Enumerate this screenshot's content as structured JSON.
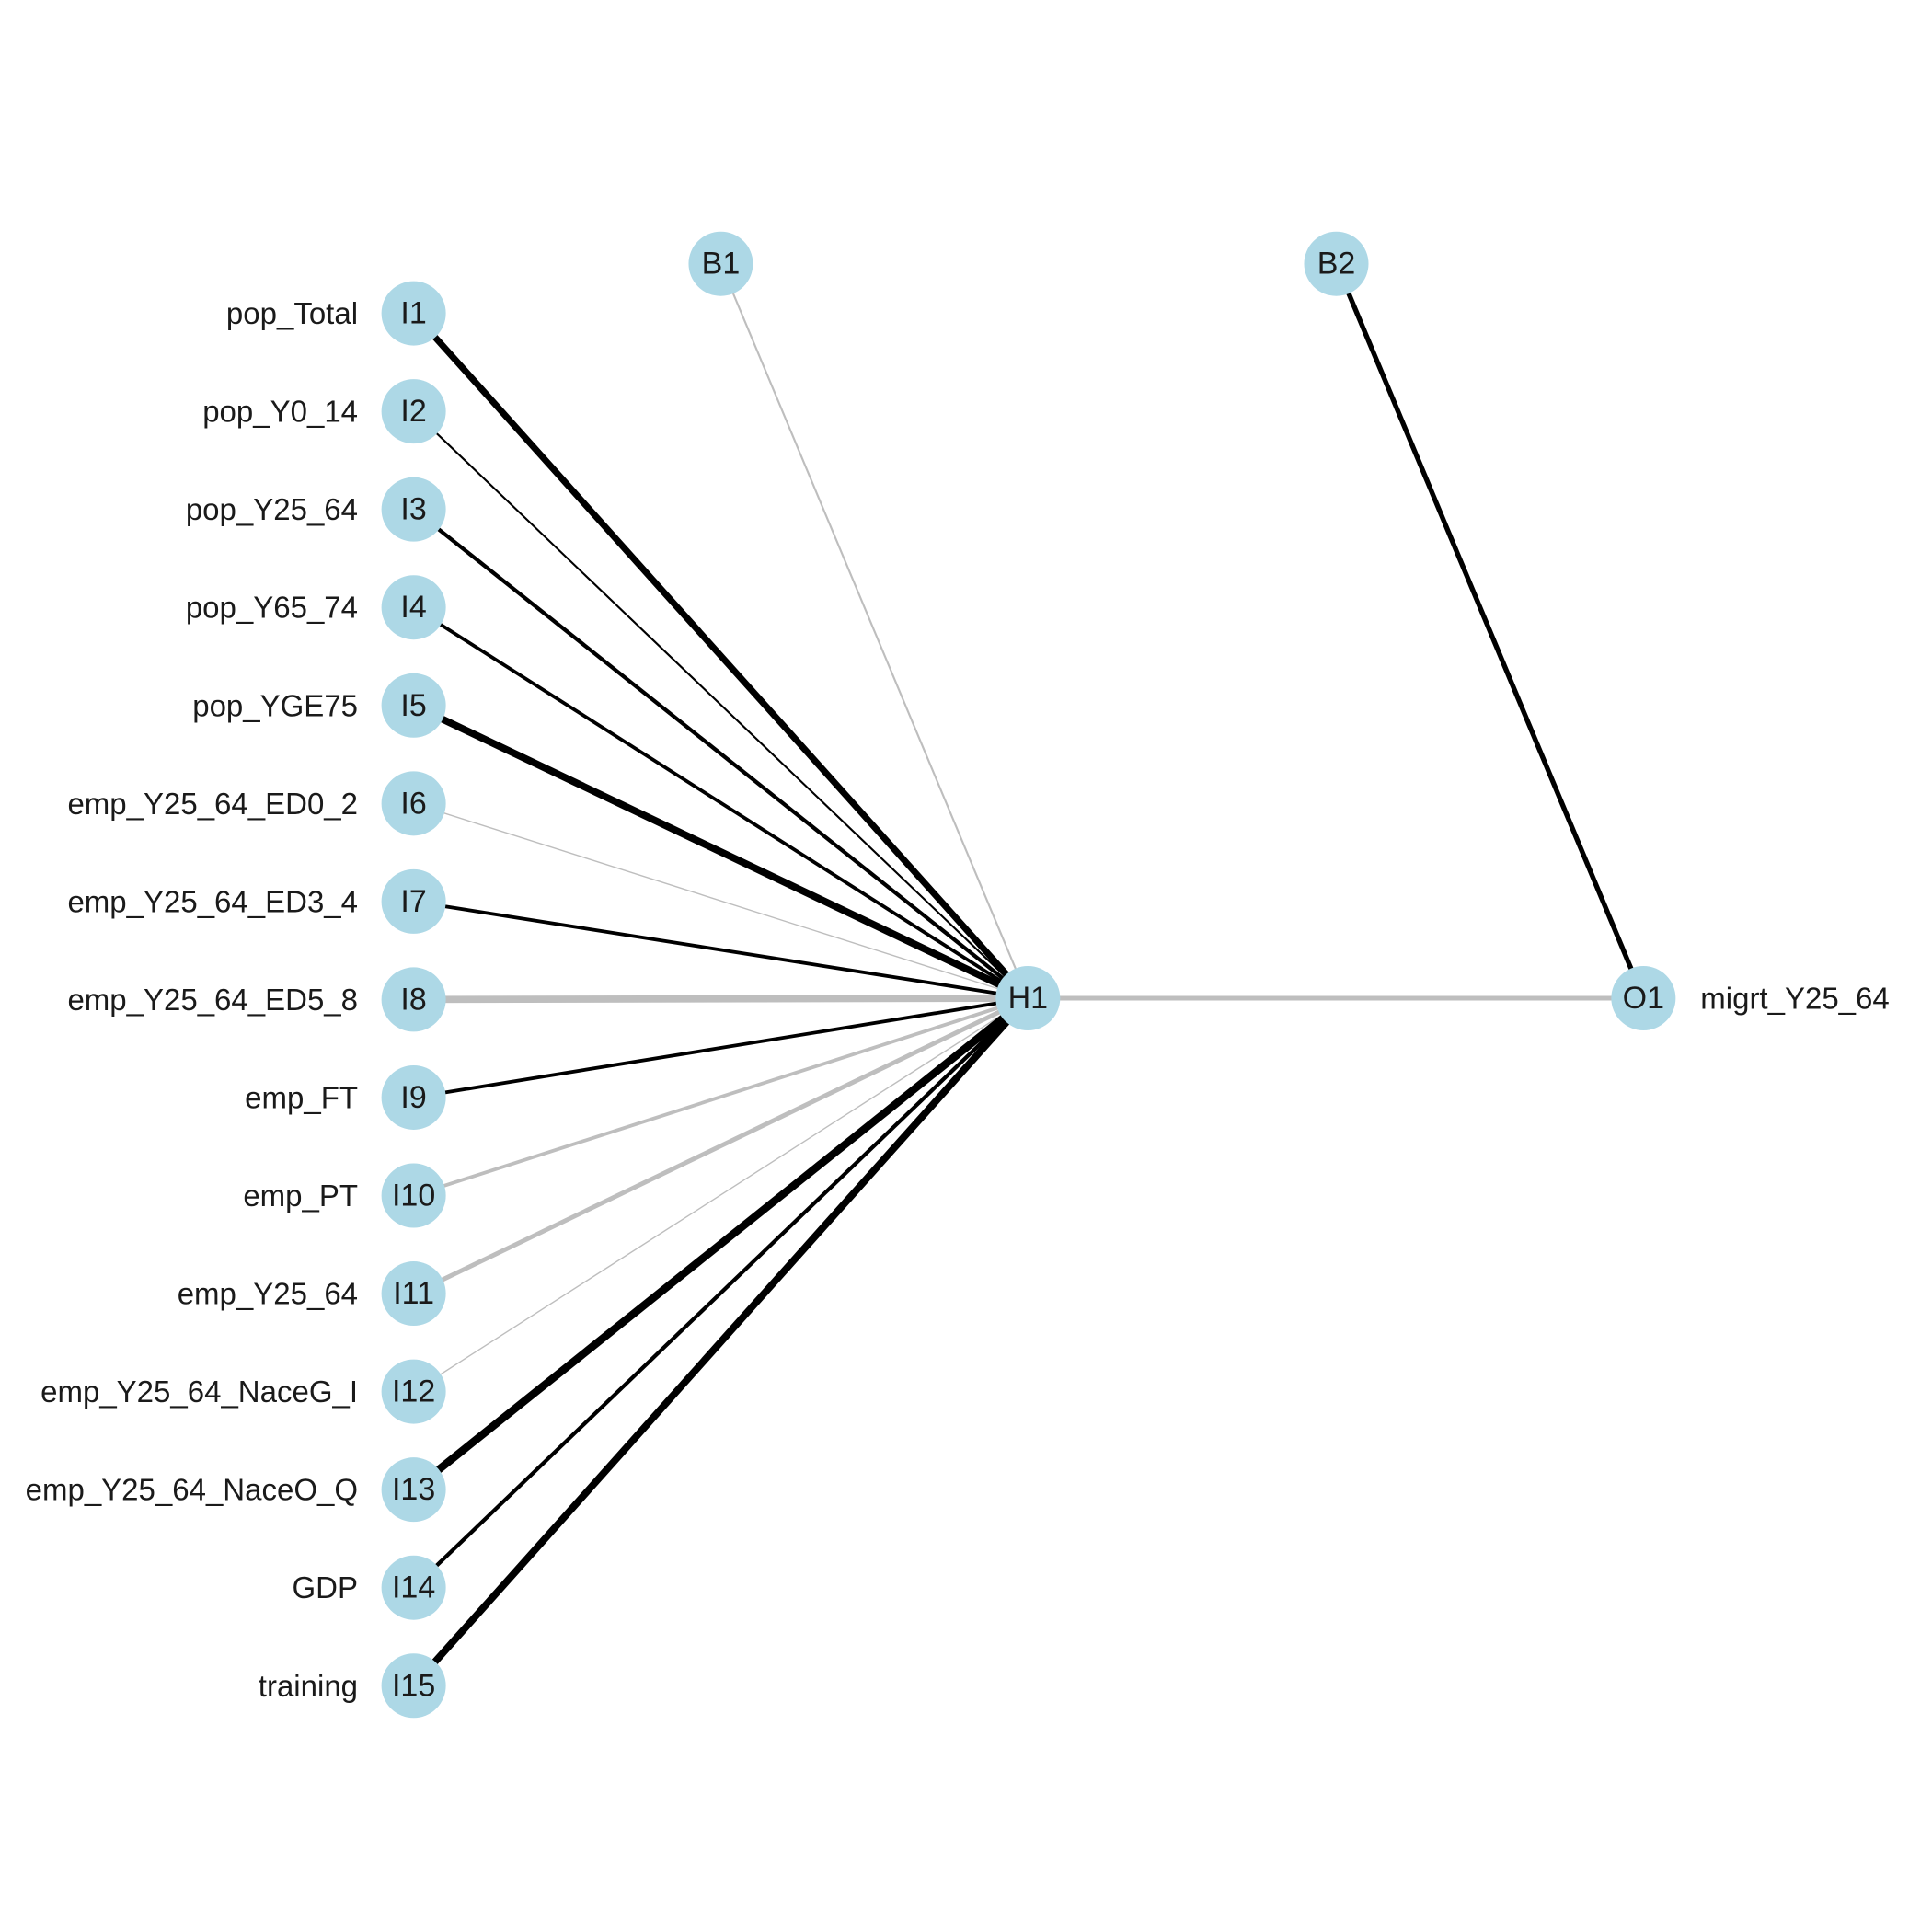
{
  "colors": {
    "node_fill": "#add8e6",
    "positive_weight": "#000000",
    "negative_weight": "#bebebe",
    "text": "#1a1a1a"
  },
  "nodes": {
    "input": [
      {
        "id": "I1",
        "label": "pop_Total"
      },
      {
        "id": "I2",
        "label": "pop_Y0_14"
      },
      {
        "id": "I3",
        "label": "pop_Y25_64"
      },
      {
        "id": "I4",
        "label": "pop_Y65_74"
      },
      {
        "id": "I5",
        "label": "pop_YGE75"
      },
      {
        "id": "I6",
        "label": "emp_Y25_64_ED0_2"
      },
      {
        "id": "I7",
        "label": "emp_Y25_64_ED3_4"
      },
      {
        "id": "I8",
        "label": "emp_Y25_64_ED5_8"
      },
      {
        "id": "I9",
        "label": "emp_FT"
      },
      {
        "id": "I10",
        "label": "emp_PT"
      },
      {
        "id": "I11",
        "label": "emp_Y25_64"
      },
      {
        "id": "I12",
        "label": "emp_Y25_64_NaceG_I"
      },
      {
        "id": "I13",
        "label": "emp_Y25_64_NaceO_Q"
      },
      {
        "id": "I14",
        "label": "GDP"
      },
      {
        "id": "I15",
        "label": "training"
      }
    ],
    "hidden": [
      {
        "id": "H1"
      }
    ],
    "output": [
      {
        "id": "O1",
        "label": "migrt_Y25_64"
      }
    ],
    "bias": [
      {
        "id": "B1"
      },
      {
        "id": "B2"
      }
    ]
  },
  "connections": [
    {
      "from": "I1",
      "to": "H1",
      "sign": "positive",
      "strength": 5
    },
    {
      "from": "I2",
      "to": "H1",
      "sign": "positive",
      "strength": 1.5
    },
    {
      "from": "I3",
      "to": "H1",
      "sign": "positive",
      "strength": 3
    },
    {
      "from": "I4",
      "to": "H1",
      "sign": "positive",
      "strength": 2.7
    },
    {
      "from": "I5",
      "to": "H1",
      "sign": "positive",
      "strength": 5.5
    },
    {
      "from": "I6",
      "to": "H1",
      "sign": "negative",
      "strength": 1
    },
    {
      "from": "I7",
      "to": "H1",
      "sign": "positive",
      "strength": 2.7
    },
    {
      "from": "I8",
      "to": "H1",
      "sign": "negative",
      "strength": 5.5
    },
    {
      "from": "I9",
      "to": "H1",
      "sign": "positive",
      "strength": 2.7
    },
    {
      "from": "I10",
      "to": "H1",
      "sign": "negative",
      "strength": 2.7
    },
    {
      "from": "I11",
      "to": "H1",
      "sign": "negative",
      "strength": 3.5
    },
    {
      "from": "I12",
      "to": "H1",
      "sign": "negative",
      "strength": 1
    },
    {
      "from": "I13",
      "to": "H1",
      "sign": "positive",
      "strength": 6
    },
    {
      "from": "I14",
      "to": "H1",
      "sign": "positive",
      "strength": 3
    },
    {
      "from": "I15",
      "to": "H1",
      "sign": "positive",
      "strength": 5.5
    },
    {
      "from": "B1",
      "to": "H1",
      "sign": "negative",
      "strength": 1.5
    },
    {
      "from": "H1",
      "to": "O1",
      "sign": "negative",
      "strength": 3.5
    },
    {
      "from": "B2",
      "to": "O1",
      "sign": "positive",
      "strength": 3.8
    }
  ]
}
